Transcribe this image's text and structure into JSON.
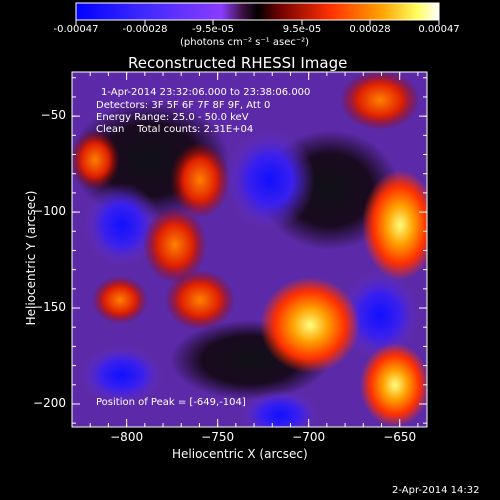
{
  "colorbar": {
    "ticks": [
      "-0.00047",
      "-0.00028",
      "-9.5e-05",
      "9.5e-05",
      "0.00028",
      "0.00047"
    ],
    "unit_label": "(photons cm⁻² s⁻¹ asec⁻²)"
  },
  "title": "Reconstructed RHESSI Image",
  "annotations": {
    "time_range": "1-Apr-2014 23:32:06.000 to 23:38:06.000",
    "detectors": "Detectors: 3F 5F 6F 7F 8F 9F, Att 0",
    "energy_range": "Energy Range: 25.0 - 50.0 keV",
    "clean_counts": "Clean    Total counts: 2.31E+04",
    "peak_position": "Position of Peak = [-649,-104]"
  },
  "axes": {
    "xlabel": "Heliocentric X (arcsec)",
    "ylabel": "Heliocentric Y (arcsec)",
    "x_ticks": [
      "-800",
      "-750",
      "-700",
      "-650"
    ],
    "y_ticks": [
      "-50",
      "-100",
      "-150",
      "-200"
    ],
    "x_range": [
      -830,
      -635
    ],
    "y_range": [
      -212,
      -27
    ]
  },
  "footer": {
    "timestamp": "2-Apr-2014 14:32"
  },
  "colors": {
    "colormap": [
      "#0000ff",
      "#4420e0",
      "#6a2fbf",
      "#2a1020",
      "#8a0000",
      "#ff4000",
      "#ffa000",
      "#ffff80",
      "#ffffff"
    ]
  }
}
